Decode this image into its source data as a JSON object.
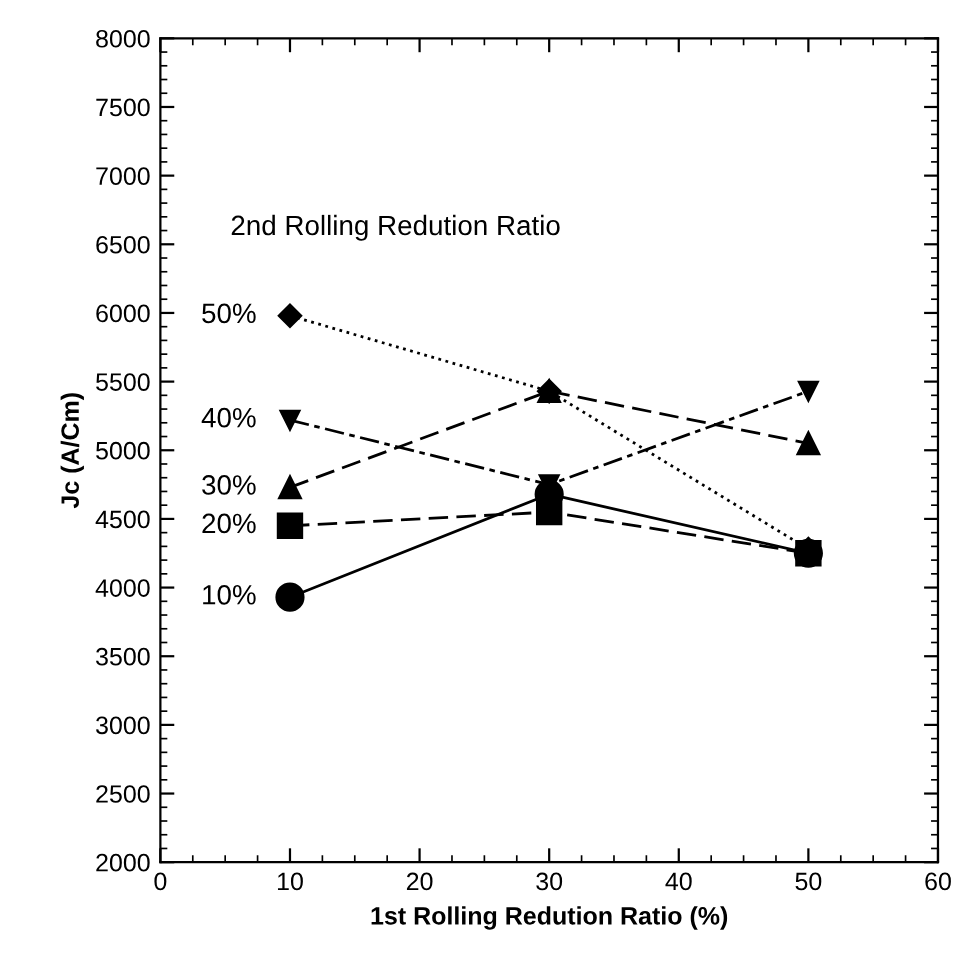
{
  "chart_data": {
    "type": "line",
    "xlabel": "1st Rolling Redution Ratio (%)",
    "ylabel": "Jc (A/Cm)",
    "legend_title": "2nd Rolling Redution Ratio",
    "x": [
      10,
      30,
      50
    ],
    "series": [
      {
        "name": "10%",
        "color": "#000000",
        "marker": "circle",
        "line_style": "solid",
        "values": [
          3930,
          4680,
          4250
        ]
      },
      {
        "name": "20%",
        "color": "#000000",
        "marker": "square",
        "line_style": "dashed",
        "values": [
          4450,
          4550,
          4250
        ]
      },
      {
        "name": "30%",
        "color": "#000000",
        "marker": "triangle",
        "line_style": "dashed",
        "values": [
          4730,
          5430,
          5050
        ]
      },
      {
        "name": "40%",
        "color": "#000000",
        "marker": "triangle_down",
        "line_style": "dashdot",
        "values": [
          5220,
          4750,
          5430
        ]
      },
      {
        "name": "50%",
        "color": "#000000",
        "marker": "diamond",
        "line_style": "dotted",
        "values": [
          5980,
          5430,
          4280
        ]
      }
    ],
    "xlim": [
      0,
      60
    ],
    "xticks": [
      0,
      10,
      20,
      30,
      40,
      50,
      60
    ],
    "ylim": [
      2000,
      8000
    ],
    "yticks": [
      2000,
      2500,
      3000,
      3500,
      4000,
      4500,
      5000,
      5500,
      6000,
      6500,
      7000,
      7500,
      8000
    ],
    "grid": false
  }
}
